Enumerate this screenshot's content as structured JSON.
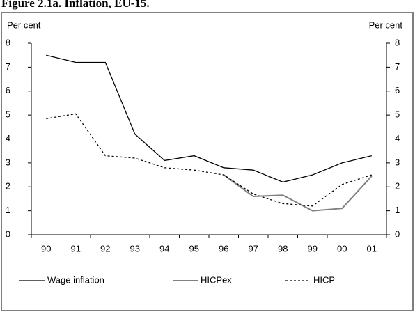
{
  "chart_data": {
    "type": "line",
    "title": "Figure 2.1a. Inflation, EU-15.",
    "y_label": "Per cent",
    "y2_label": "Per cent",
    "categories": [
      "90",
      "91",
      "92",
      "93",
      "94",
      "95",
      "96",
      "97",
      "98",
      "99",
      "00",
      "01"
    ],
    "series": [
      {
        "name": "Wage inflation",
        "color": "#000000",
        "dash": "solid",
        "values": [
          7.5,
          7.2,
          7.2,
          4.2,
          3.1,
          3.3,
          2.8,
          2.7,
          2.2,
          2.5,
          3.0,
          3.3
        ]
      },
      {
        "name": "HICPex",
        "color": "#808080",
        "dash": "solid",
        "values": [
          null,
          null,
          null,
          null,
          null,
          null,
          2.5,
          1.6,
          1.65,
          1.0,
          1.1,
          2.45
        ]
      },
      {
        "name": "HICP",
        "color": "#000000",
        "dash": "dotted",
        "values": [
          4.85,
          5.05,
          3.3,
          3.2,
          2.8,
          2.7,
          2.5,
          1.7,
          1.3,
          1.2,
          2.1,
          2.5
        ]
      }
    ],
    "ylim": [
      0,
      8
    ],
    "yticks": [
      0,
      1,
      2,
      3,
      4,
      5,
      6,
      7,
      8
    ],
    "y2lim": [
      0,
      8
    ],
    "y2ticks": [
      0,
      1,
      2,
      3,
      4,
      5,
      6,
      7,
      8
    ],
    "grid": false,
    "legend": "bottom"
  }
}
